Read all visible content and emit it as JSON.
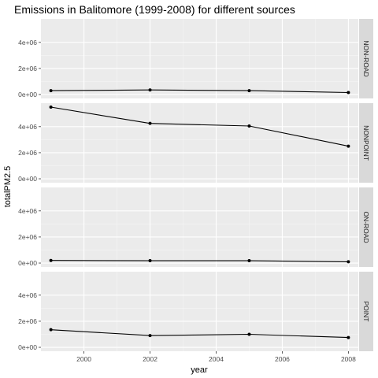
{
  "chart_data": {
    "type": "line",
    "title": "Emissions in Balitomore (1999-2008) for different sources",
    "xlabel": "year",
    "ylabel": "totalPM2.5",
    "x": [
      1999,
      2002,
      2005,
      2008
    ],
    "x_ticks": [
      "2000",
      "2002",
      "2004",
      "2006",
      "2008"
    ],
    "x_range": [
      1998.7,
      2008.3
    ],
    "y_ticks": [
      "0e+00",
      "2e+06",
      "4e+06"
    ],
    "y_range": [
      -300000,
      5800000
    ],
    "grid": true,
    "facets": [
      {
        "name": "NON-ROAD",
        "values": [
          300000,
          350000,
          300000,
          150000
        ]
      },
      {
        "name": "NONPOINT",
        "values": [
          5500000,
          4250000,
          4050000,
          2500000
        ]
      },
      {
        "name": "ON-ROAD",
        "values": [
          200000,
          180000,
          180000,
          100000
        ]
      },
      {
        "name": "POINT",
        "values": [
          1350000,
          900000,
          1000000,
          750000
        ]
      }
    ]
  }
}
